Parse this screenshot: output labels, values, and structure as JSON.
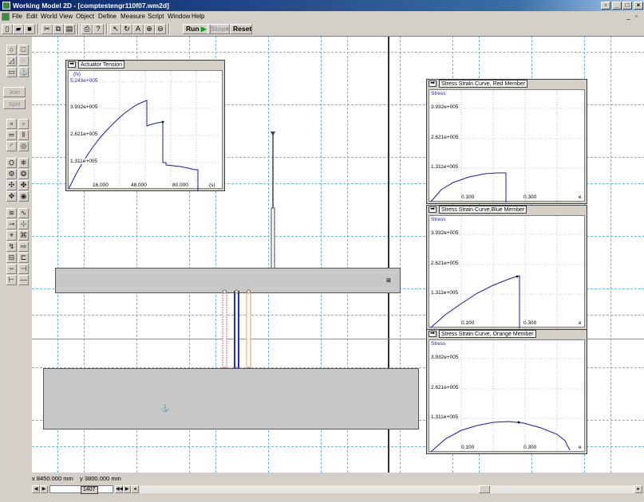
{
  "window": {
    "title": "Working Model 2D - [comptestengr110f07.wm2d]"
  },
  "menu": [
    "File",
    "Edit",
    "World",
    "View",
    "Object",
    "Define",
    "Measure",
    "Script",
    "Window",
    "Help"
  ],
  "toolbar": {
    "run_label": "Run",
    "stop_label": "Stop",
    "reset_label": "Reset"
  },
  "leftbar": {
    "join_label": "Join",
    "split_label": "Split"
  },
  "charts": {
    "actuator": {
      "title": "Actuator Tension",
      "unit_label": "(N)",
      "y_ticks": [
        "5.243e+005",
        "3.932e+005",
        "2.621e+005",
        "1.311e+005"
      ],
      "x_ticks": [
        "16.000",
        "48.000",
        "80.000"
      ],
      "x_unit": "(s)"
    },
    "red": {
      "title": "Stress Strain Curve, Red Member",
      "ylabel": "Stress",
      "y_ticks": [
        "3.932e+005",
        "2.621e+005",
        "1.311e+005"
      ],
      "x_ticks": [
        "0.100",
        "0.300"
      ],
      "x_unit": "e"
    },
    "blue": {
      "title": "Stress Strain Curve,Blue Member",
      "ylabel": "Stress",
      "y_ticks": [
        "3.932e+005",
        "2.621e+005",
        "1.311e+005"
      ],
      "x_ticks": [
        "0.100",
        "0.300"
      ],
      "x_unit": "e"
    },
    "orange": {
      "title": "Stress Strain Curve, Orange Member",
      "ylabel": "Stress",
      "y_ticks": [
        "3.932e+005",
        "2.621e+005",
        "1.311e+005"
      ],
      "x_ticks": [
        "0.100",
        "0.300"
      ],
      "x_unit": "e"
    }
  },
  "status": {
    "x_label": "x",
    "x_value": "8450.000",
    "x_unit": "mm",
    "y_label": "y",
    "y_value": "3800.000",
    "y_unit": "mm"
  },
  "scroll": {
    "frame": "1407"
  },
  "colors": {
    "grid": "#6fb6e6",
    "curve": "#1a1aa8",
    "red_member": "#e0607a",
    "blue_member": "#2030c0",
    "orange_member": "#f0a040",
    "block": "#c8c8c8"
  }
}
